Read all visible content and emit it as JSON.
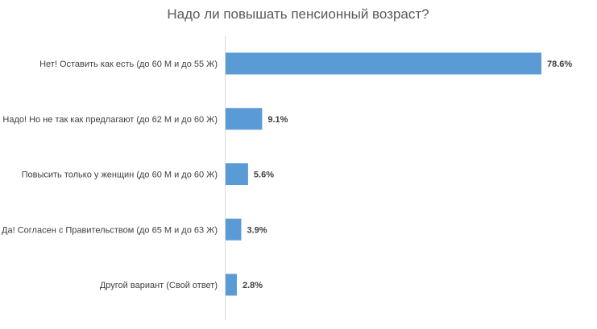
{
  "chart_data": {
    "type": "bar",
    "orientation": "horizontal",
    "title": "Надо ли повышать пенсионный возраст?",
    "xlabel": "",
    "ylabel": "",
    "categories": [
      "Нет! Оставить как есть (до 60 М и до 55 Ж)",
      "Надо! Но не так как предлагают (до 62 М и до 60 Ж)",
      "Повысить только у женщин (до 60 М и до 60 Ж)",
      "Да! Согласен с Правительством (до 65 М и до 63 Ж)",
      "Другой вариант (Свой ответ)"
    ],
    "values": [
      78.6,
      9.1,
      5.6,
      3.9,
      2.8
    ],
    "value_labels": [
      "78.6%",
      "9.1%",
      "5.6%",
      "3.9%",
      "2.8%"
    ],
    "xlim": [
      0,
      78.6
    ],
    "grid": false,
    "legend": "none",
    "bar_color": "#5b9bd5",
    "axis_color": "#d9d9d9"
  }
}
